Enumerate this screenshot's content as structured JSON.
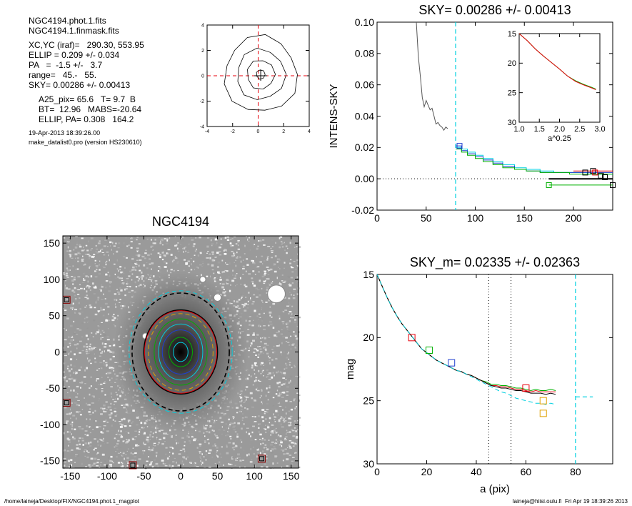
{
  "header": {
    "lines_a": [
      "NGC4194.phot.1.fits",
      "NGC4194.1.finmask.fits"
    ],
    "lines_b": [
      "XC,YC (iraf)=   290.30, 553.95",
      "ELLIP = 0.209 +/- 0.034",
      "PA   =  -1.5 +/-   3.7",
      "range=   45.-   55.",
      "SKY= 0.00286 +/- 0.00413"
    ],
    "lines_c": [
      "A25_pix= 65.6   T= 9.7  B",
      "BT=  12.96   MABS=-20.64",
      "ELLIP, PA= 0.308   164.2"
    ],
    "date": "19-Apr-2013 18:39:26.00",
    "program": "make_datalist0.pro (version HS230610)"
  },
  "footer": {
    "path": "/home/laineja/Desktop/FIX/NGC4194.phot.1_magplot",
    "user": "laineja@hiisi.oulu.fi  Fri Apr 19 18:39:26 2013"
  },
  "colors": {
    "red": "#e8000b",
    "green": "#00b000",
    "blue": "#1f3fd0",
    "cyan": "#00d0e0",
    "orange": "#e0a000",
    "black": "#000000",
    "dark_red": "#8b0000"
  },
  "chart_data": [
    {
      "id": "centering",
      "type": "line",
      "xlim": [
        -4,
        4
      ],
      "ylim": [
        -4,
        4
      ],
      "xticks": [
        "-4",
        "-2",
        "0",
        "2",
        "4"
      ],
      "yticks": [
        "-4",
        "-2",
        "0",
        "2",
        "4"
      ],
      "contour_radii": [
        0.35,
        1.1,
        1.9,
        2.85
      ]
    },
    {
      "id": "sky",
      "type": "line",
      "title": "SKY= 0.00286 +/- 0.00413",
      "ylabel": "INTENS-SKY",
      "xlim": [
        0,
        240
      ],
      "ylim": [
        -0.02,
        0.1
      ],
      "xticks": [
        "0",
        "50",
        "100",
        "150",
        "200"
      ],
      "yticks": [
        "-0.02",
        "0.00",
        "0.02",
        "0.04",
        "0.06",
        "0.08",
        "0.10"
      ],
      "profile_x": [
        40,
        42,
        44,
        46,
        48,
        50,
        52,
        54,
        56,
        58,
        60,
        62,
        64,
        66,
        68,
        70,
        72
      ],
      "profile_y": [
        0.1,
        0.078,
        0.066,
        0.052,
        0.046,
        0.05,
        0.047,
        0.044,
        0.045,
        0.04,
        0.035,
        0.036,
        0.034,
        0.033,
        0.031,
        0.033,
        0.032
      ],
      "cyan_vline": 80,
      "step_x": [
        80,
        86,
        92,
        100,
        108,
        118,
        128,
        140,
        152,
        166,
        180,
        196,
        214,
        240
      ],
      "series": [
        {
          "color": "cyan",
          "values": [
            0.02,
            0.019,
            0.017,
            0.015,
            0.013,
            0.011,
            0.009,
            0.007,
            0.006,
            0.005,
            0.004,
            0.004,
            0.003
          ]
        },
        {
          "color": "blue",
          "values": [
            0.021,
            0.018,
            0.016,
            0.014,
            0.012,
            0.01,
            0.008,
            0.006,
            0.005,
            0.004,
            0.004,
            0.004,
            0.004
          ]
        },
        {
          "color": "green",
          "values": [
            0.019,
            0.017,
            0.015,
            0.013,
            0.011,
            0.009,
            0.007,
            0.006,
            0.005,
            0.004,
            0.004,
            0.003,
            0.003
          ]
        }
      ],
      "tail": [
        {
          "color": "red",
          "x": [
            200,
            240
          ],
          "y": [
            0.005,
            0.005
          ]
        },
        {
          "color": "black",
          "x": [
            175,
            240
          ],
          "y": [
            0.0,
            0.0
          ]
        },
        {
          "color": "green",
          "x": [
            175,
            240
          ],
          "y": [
            -0.004,
            -0.004
          ]
        }
      ],
      "markers": [
        {
          "x": 84,
          "y": 0.021,
          "color": "blue"
        },
        {
          "x": 175,
          "y": -0.004,
          "color": "green"
        },
        {
          "x": 212,
          "y": 0.004,
          "color": "black"
        },
        {
          "x": 220,
          "y": 0.005,
          "color": "black"
        },
        {
          "x": 222,
          "y": 0.004,
          "color": "red"
        },
        {
          "x": 228,
          "y": 0.002,
          "color": "black"
        },
        {
          "x": 232,
          "y": 0.001,
          "color": "black"
        },
        {
          "x": 240,
          "y": -0.004,
          "color": "black"
        }
      ]
    },
    {
      "id": "sky_inset",
      "type": "line",
      "xlabel": "a^0.25",
      "xlim": [
        1.0,
        3.0
      ],
      "ylim": [
        15,
        30
      ],
      "xticks": [
        "1.0",
        "1.5",
        "2.0",
        "2.5",
        "3.0"
      ],
      "yticks": [
        "15",
        "20",
        "25",
        "30"
      ],
      "x": [
        1.0,
        1.2,
        1.4,
        1.6,
        1.8,
        2.0,
        2.2,
        2.4,
        2.6,
        2.8,
        2.9
      ],
      "series": [
        {
          "color": "green",
          "values": [
            15.0,
            16.2,
            17.6,
            18.8,
            19.9,
            21.0,
            22.2,
            23.0,
            23.6,
            24.1,
            24.4
          ]
        },
        {
          "color": "red",
          "values": [
            15.0,
            16.2,
            17.6,
            18.8,
            19.9,
            21.0,
            22.2,
            23.1,
            23.7,
            24.2,
            24.5
          ]
        }
      ]
    },
    {
      "id": "image",
      "type": "heatmap",
      "title": "NGC4194",
      "xlim": [
        -160,
        160
      ],
      "ylim": [
        -160,
        160
      ],
      "xticks": [
        "-150",
        "-100",
        "-50",
        "0",
        "50",
        "100",
        "150"
      ],
      "yticks": [
        "-150",
        "-100",
        "-50",
        "0",
        "50",
        "100",
        "150"
      ],
      "ellipses": [
        {
          "color": "black",
          "a": 66,
          "b": 80,
          "dash": true
        },
        {
          "color": "cyan",
          "a": 70,
          "b": 83,
          "dash": true
        },
        {
          "color": "black",
          "a": 50,
          "b": 57,
          "dash": false
        },
        {
          "color": "red",
          "a": 49,
          "b": 56,
          "dash": false
        },
        {
          "color": "orange",
          "a": 44,
          "b": 52,
          "dash": true
        },
        {
          "color": "green",
          "a": 36,
          "b": 45,
          "dash": false
        },
        {
          "color": "cyan",
          "a": 30,
          "b": 38,
          "dash": false
        },
        {
          "color": "blue",
          "a": 25,
          "b": 30,
          "dash": false
        },
        {
          "color": "green",
          "a": 16,
          "b": 20,
          "dash": false
        },
        {
          "color": "cyan",
          "a": 10,
          "b": 13,
          "dash": false
        }
      ],
      "stars": [
        {
          "x": 130,
          "y": 80,
          "r": 12
        },
        {
          "x": 50,
          "y": 75,
          "r": 5
        },
        {
          "x": -48,
          "y": 22,
          "r": 4
        },
        {
          "x": 30,
          "y": 100,
          "r": 4
        }
      ],
      "boxes": [
        {
          "x": -155,
          "y": 72
        },
        {
          "x": -155,
          "y": -70
        },
        {
          "x": -65,
          "y": -156
        },
        {
          "x": 110,
          "y": -147
        }
      ]
    },
    {
      "id": "mag",
      "type": "line",
      "title": "SKY_m=  0.02335 +/- 0.02363",
      "xlabel": "a (pix)",
      "ylabel": "mag",
      "xlim": [
        0,
        95
      ],
      "ylim": [
        15,
        30
      ],
      "xticks": [
        "0",
        "20",
        "40",
        "60",
        "80"
      ],
      "yticks": [
        "15",
        "20",
        "25",
        "30"
      ],
      "dotted_vlines": [
        45,
        54
      ],
      "cyan_vline": 80,
      "x": [
        0,
        2,
        4,
        6,
        8,
        10,
        12,
        14,
        16,
        18,
        20,
        22,
        24,
        26,
        28,
        30,
        32,
        34,
        36,
        38,
        40,
        42,
        44,
        46,
        48,
        50,
        52,
        54,
        56,
        58,
        60,
        62,
        64,
        66,
        68,
        70,
        72
      ],
      "series": [
        {
          "color": "green",
          "values": [
            15.0,
            15.9,
            16.8,
            17.6,
            18.3,
            18.9,
            19.4,
            19.9,
            20.4,
            20.9,
            21.2,
            21.5,
            21.8,
            22.0,
            22.2,
            22.4,
            22.6,
            22.7,
            22.9,
            23.0,
            23.2,
            23.4,
            23.5,
            23.7,
            23.7,
            23.8,
            23.8,
            23.9,
            24.0,
            24.0,
            24.1,
            24.2,
            24.1,
            24.2,
            24.2,
            24.1,
            24.2
          ]
        },
        {
          "color": "red",
          "values": [
            15.0,
            15.9,
            16.8,
            17.6,
            18.3,
            18.9,
            19.4,
            19.9,
            20.4,
            20.9,
            21.2,
            21.5,
            21.8,
            22.0,
            22.2,
            22.4,
            22.6,
            22.7,
            22.9,
            23.0,
            23.2,
            23.4,
            23.6,
            23.8,
            23.8,
            23.9,
            23.9,
            24.0,
            24.1,
            24.1,
            24.2,
            24.3,
            24.2,
            24.3,
            24.3,
            24.3,
            24.3
          ]
        },
        {
          "color": "black",
          "values": [
            15.0,
            15.9,
            16.8,
            17.6,
            18.3,
            18.9,
            19.4,
            19.9,
            20.4,
            20.9,
            21.2,
            21.5,
            21.8,
            22.0,
            22.2,
            22.4,
            22.6,
            22.7,
            22.9,
            23.0,
            23.2,
            23.4,
            23.6,
            23.8,
            23.9,
            24.0,
            24.0,
            24.1,
            24.2,
            24.2,
            24.3,
            24.4,
            24.4,
            24.4,
            24.5,
            24.4,
            24.5
          ]
        },
        {
          "color": "cyan",
          "values": [
            15.0,
            15.9,
            16.8,
            17.6,
            18.3,
            18.9,
            19.4,
            19.9,
            20.4,
            20.9,
            21.2,
            21.5,
            21.8,
            22.0,
            22.2,
            22.4,
            22.6,
            22.7,
            22.9,
            23.1,
            23.3,
            23.5,
            23.7,
            23.9,
            24.1,
            24.3,
            24.4,
            24.6,
            24.8,
            24.9,
            25.0,
            25.1,
            25.2,
            25.2,
            25.3,
            25.2,
            25.3
          ]
        }
      ],
      "cyan_tail": {
        "x": [
          80,
          87
        ],
        "y": 24.7
      },
      "markers": [
        {
          "x": 14,
          "y": 20.0,
          "color": "red"
        },
        {
          "x": 21,
          "y": 21.0,
          "color": "green"
        },
        {
          "x": 30,
          "y": 22.0,
          "color": "blue"
        },
        {
          "x": 60,
          "y": 24.0,
          "color": "red"
        },
        {
          "x": 67,
          "y": 25.0,
          "color": "orange"
        },
        {
          "x": 67,
          "y": 26.0,
          "color": "orange"
        }
      ]
    }
  ]
}
